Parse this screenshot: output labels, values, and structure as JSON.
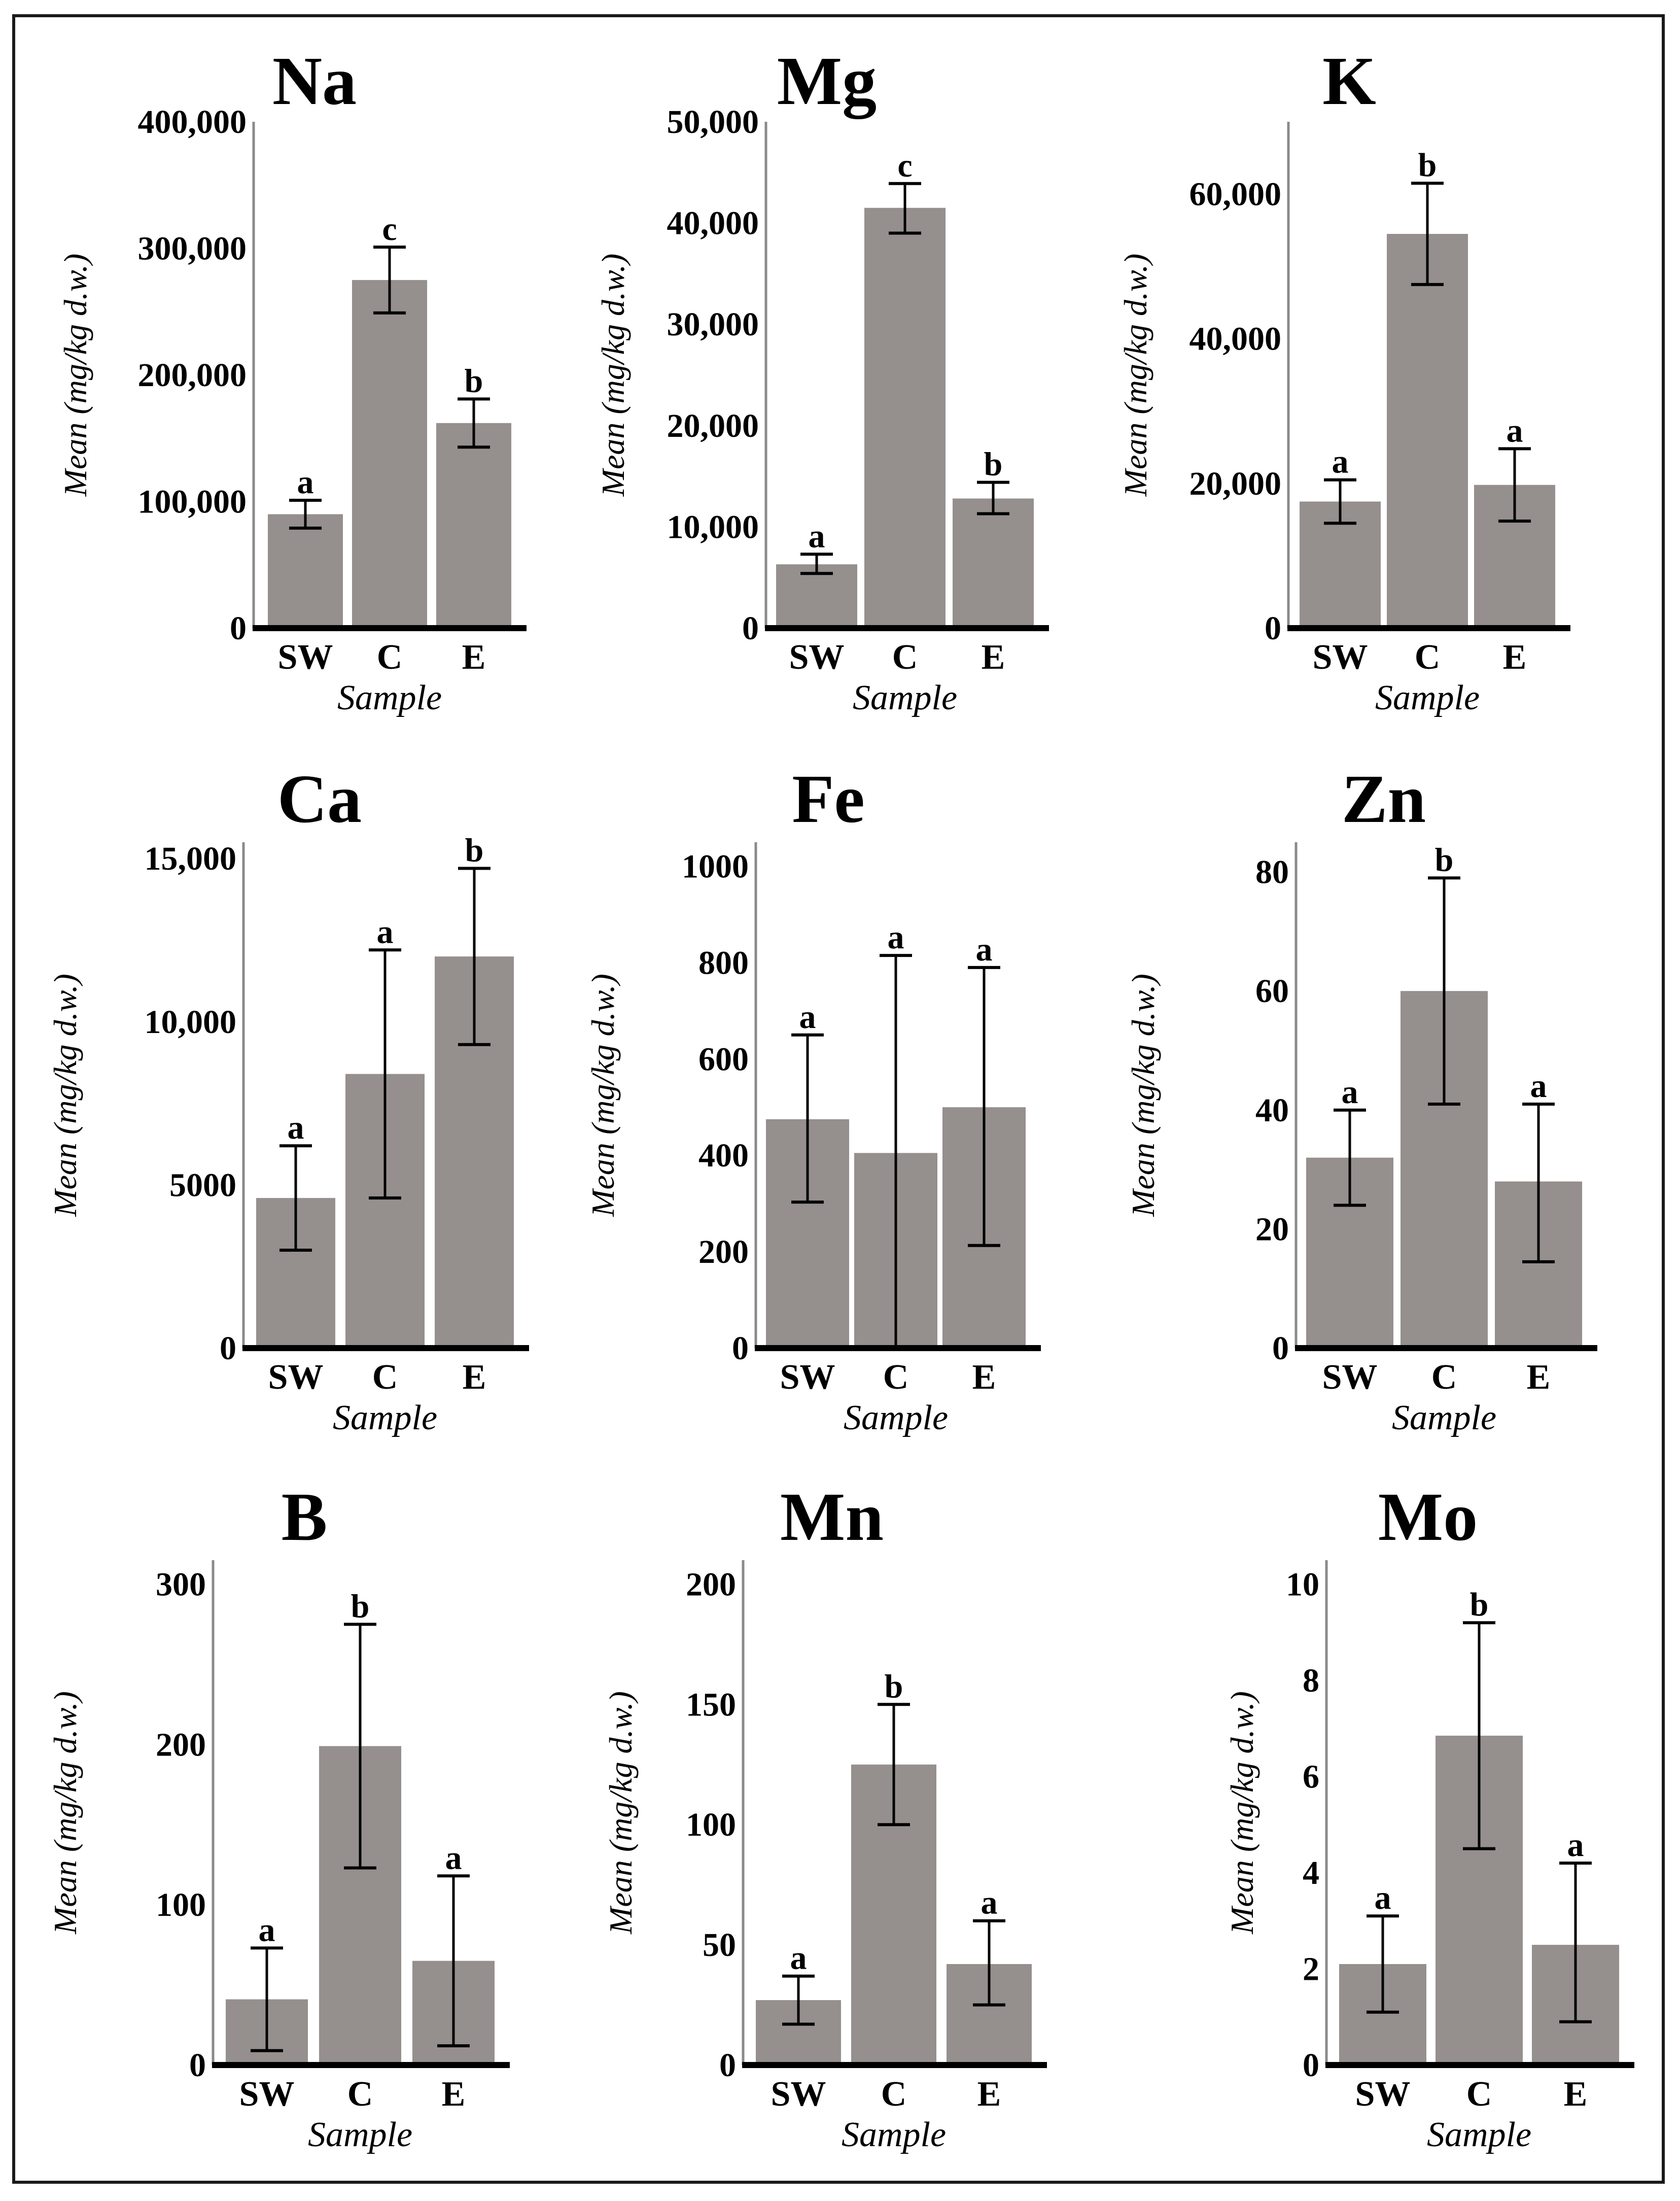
{
  "chart_data": [
    {
      "type": "bar",
      "title": "Na",
      "xlabel": "Sample",
      "ylabel": "Mean (mg/kg d.w.)",
      "categories": [
        "SW",
        "C",
        "E"
      ],
      "values": [
        90000,
        275000,
        162000
      ],
      "error_low": [
        79000,
        249000,
        143000
      ],
      "error_high": [
        101000,
        301000,
        181000
      ],
      "significance": [
        "a",
        "c",
        "b"
      ],
      "ylim": [
        0,
        400000
      ],
      "yticks": [
        0,
        100000,
        200000,
        300000,
        400000
      ],
      "yticklabels": [
        "0",
        "100,000",
        "200,000",
        "300,000",
        "400,000"
      ]
    },
    {
      "type": "bar",
      "title": "Mg",
      "xlabel": "Sample",
      "ylabel": "Mean (mg/kg d.w.)",
      "categories": [
        "SW",
        "C",
        "E"
      ],
      "values": [
        6300,
        41500,
        12800
      ],
      "error_low": [
        5400,
        39000,
        11300
      ],
      "error_high": [
        7300,
        43900,
        14400
      ],
      "significance": [
        "a",
        "c",
        "b"
      ],
      "ylim": [
        0,
        50000
      ],
      "yticks": [
        0,
        10000,
        20000,
        30000,
        40000,
        50000
      ],
      "yticklabels": [
        "0",
        "10,000",
        "20,000",
        "30,000",
        "40,000",
        "50,000"
      ]
    },
    {
      "type": "bar",
      "title": "K",
      "xlabel": "Sample",
      "ylabel": "Mean (mg/kg d.w.)",
      "categories": [
        "SW",
        "C",
        "E"
      ],
      "values": [
        17500,
        54500,
        19800
      ],
      "error_low": [
        14500,
        47500,
        14800
      ],
      "error_high": [
        20500,
        61500,
        24800
      ],
      "significance": [
        "a",
        "b",
        "a"
      ],
      "ylim": [
        0,
        70000
      ],
      "yticks": [
        0,
        20000,
        40000,
        60000
      ],
      "yticklabels": [
        "0",
        "20,000",
        "40,000",
        "60,000"
      ]
    },
    {
      "type": "bar",
      "title": "Ca",
      "xlabel": "Sample",
      "ylabel": "Mean (mg/kg d.w.)",
      "categories": [
        "SW",
        "C",
        "E"
      ],
      "values": [
        4600,
        8400,
        12000
      ],
      "error_low": [
        3000,
        4600,
        9300
      ],
      "error_high": [
        6200,
        12200,
        14700
      ],
      "significance": [
        "a",
        "a",
        "b"
      ],
      "ylim": [
        0,
        15500
      ],
      "yticks": [
        0,
        5000,
        10000,
        15000
      ],
      "yticklabels": [
        "0",
        "5000",
        "10,000",
        "15,000"
      ]
    },
    {
      "type": "bar",
      "title": "Fe",
      "xlabel": "Sample",
      "ylabel": "Mean (mg/kg d.w.)",
      "categories": [
        "SW",
        "C",
        "E"
      ],
      "values": [
        475,
        405,
        500
      ],
      "error_low": [
        303,
        0,
        213
      ],
      "error_high": [
        650,
        815,
        790
      ],
      "significance": [
        "a",
        "a",
        "a"
      ],
      "ylim": [
        0,
        1050
      ],
      "yticks": [
        0,
        200,
        400,
        600,
        800,
        1000
      ],
      "yticklabels": [
        "0",
        "200",
        "400",
        "600",
        "800",
        "1000"
      ]
    },
    {
      "type": "bar",
      "title": "Zn",
      "xlabel": "Sample",
      "ylabel": "Mean (mg/kg d.w.)",
      "categories": [
        "SW",
        "C",
        "E"
      ],
      "values": [
        32,
        60,
        28
      ],
      "error_low": [
        24,
        41,
        14.5
      ],
      "error_high": [
        40,
        79,
        41
      ],
      "significance": [
        "a",
        "b",
        "a"
      ],
      "ylim": [
        0,
        85
      ],
      "yticks": [
        0,
        20,
        40,
        60,
        80
      ],
      "yticklabels": [
        "0",
        "20",
        "40",
        "60",
        "80"
      ]
    },
    {
      "type": "bar",
      "title": "B",
      "xlabel": "Sample",
      "ylabel": "Mean (mg/kg d.w.)",
      "categories": [
        "SW",
        "C",
        "E"
      ],
      "values": [
        41,
        199,
        65
      ],
      "error_low": [
        9,
        123,
        12
      ],
      "error_high": [
        73,
        275,
        118
      ],
      "significance": [
        "a",
        "b",
        "a"
      ],
      "ylim": [
        0,
        315
      ],
      "yticks": [
        0,
        100,
        200,
        300
      ],
      "yticklabels": [
        "0",
        "100",
        "200",
        "300"
      ]
    },
    {
      "type": "bar",
      "title": "Mn",
      "xlabel": "Sample",
      "ylabel": "Mean (mg/kg d.w.)",
      "categories": [
        "SW",
        "C",
        "E"
      ],
      "values": [
        27,
        125,
        42
      ],
      "error_low": [
        17,
        100,
        25
      ],
      "error_high": [
        37,
        150,
        60
      ],
      "significance": [
        "a",
        "b",
        "a"
      ],
      "ylim": [
        0,
        210
      ],
      "yticks": [
        0,
        50,
        100,
        150,
        200
      ],
      "yticklabels": [
        "0",
        "50",
        "100",
        "150",
        "200"
      ]
    },
    {
      "type": "bar",
      "title": "Mo",
      "xlabel": "Sample",
      "ylabel": "Mean (mg/kg d.w.)",
      "categories": [
        "SW",
        "C",
        "E"
      ],
      "values": [
        2.1,
        6.85,
        2.5
      ],
      "error_low": [
        1.1,
        4.5,
        0.9
      ],
      "error_high": [
        3.1,
        9.2,
        4.2
      ],
      "significance": [
        "a",
        "b",
        "a"
      ],
      "ylim": [
        0,
        10.5
      ],
      "yticks": [
        0,
        2,
        4,
        6,
        8,
        10
      ],
      "yticklabels": [
        "0",
        "2",
        "4",
        "6",
        "8",
        "10"
      ]
    }
  ],
  "colors": {
    "bar": "#958f8d",
    "axis": "#000000",
    "error_bar": "#000000"
  }
}
